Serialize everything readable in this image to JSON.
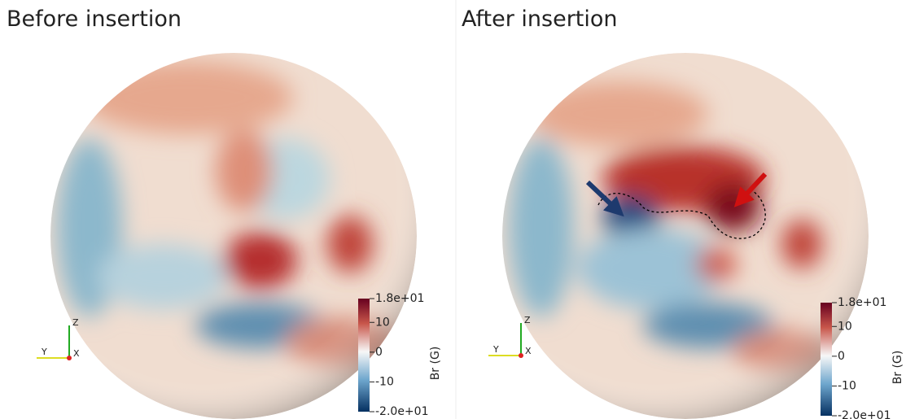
{
  "panels": [
    {
      "title": "Before insertion",
      "colorbar": {
        "label": "Br (G)",
        "range": [
          -20,
          18
        ],
        "ticks": [
          {
            "value": 18,
            "label": "1.8e+01"
          },
          10,
          0,
          -10,
          {
            "value": -20,
            "label": "-2.0e+01"
          }
        ]
      },
      "axes": {
        "z": "Z",
        "y": "Y",
        "x": "X"
      }
    },
    {
      "title": "After insertion",
      "colorbar": {
        "label": "Br (G)",
        "range": [
          -20,
          18
        ],
        "ticks": [
          {
            "value": 18,
            "label": "1.8e+01"
          },
          10,
          0,
          -10,
          {
            "value": -20,
            "label": "-2.0e+01"
          }
        ]
      },
      "axes": {
        "z": "Z",
        "y": "Y",
        "x": "X"
      }
    }
  ]
}
